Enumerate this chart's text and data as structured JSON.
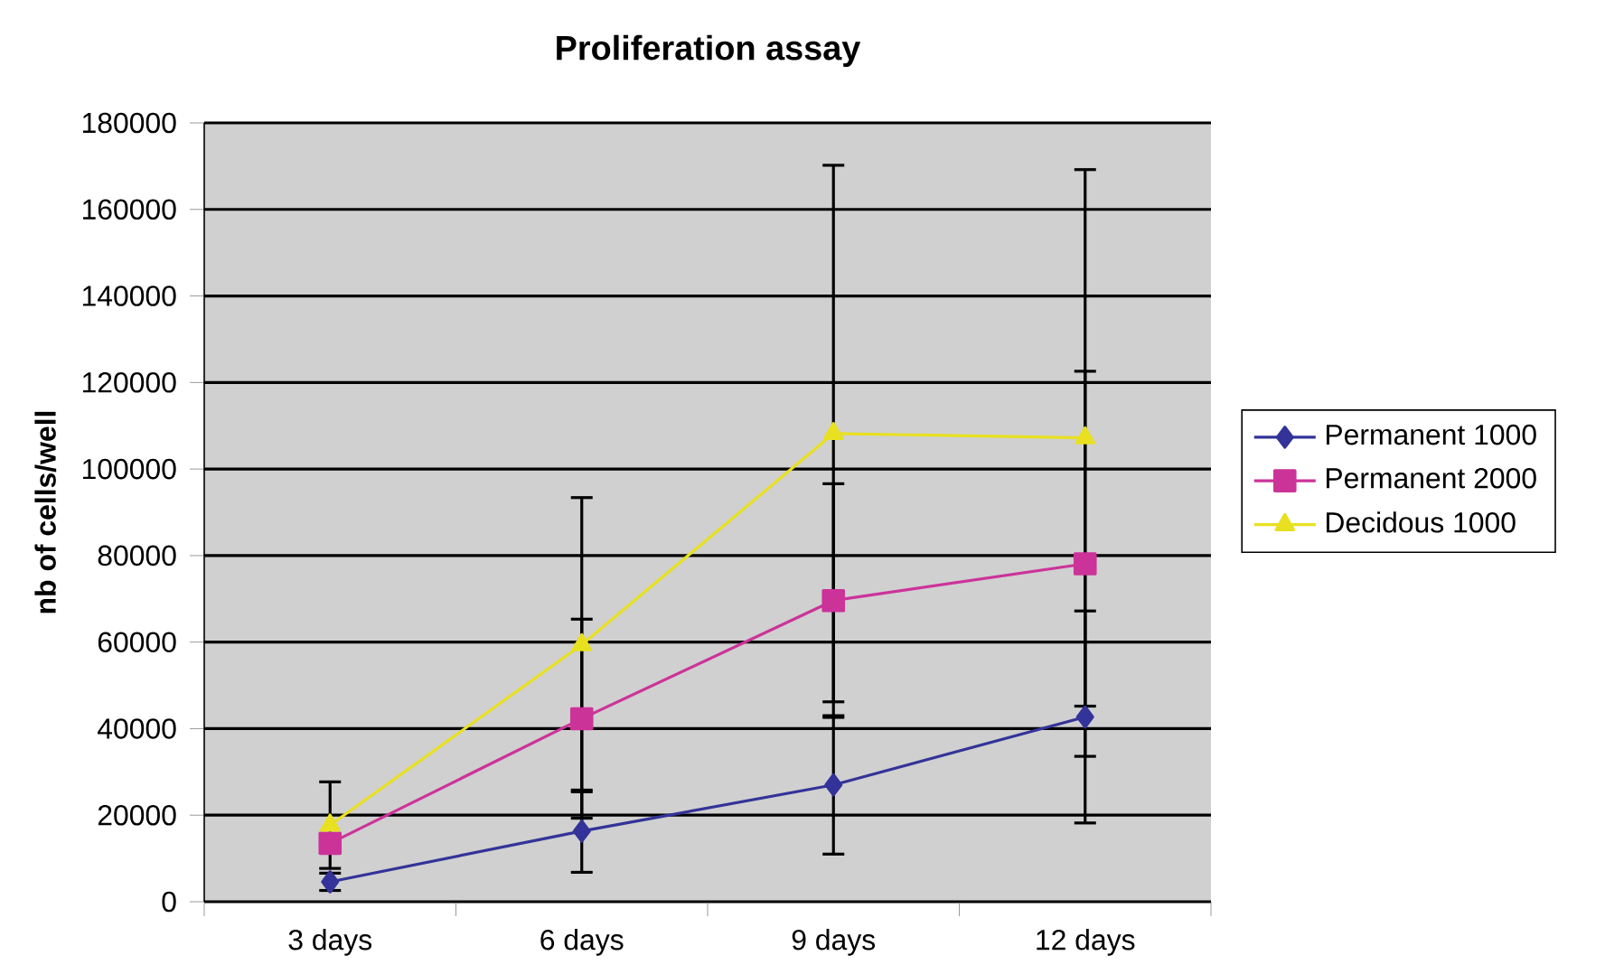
{
  "chart_data": {
    "type": "line",
    "title": "Proliferation assay",
    "ylabel": "nb of cells/well",
    "categories": [
      "3 days",
      "6 days",
      "9 days",
      "12 days"
    ],
    "series": [
      {
        "name": "Permanent 1000",
        "color": "#333399",
        "marker": "diamond",
        "values": [
          4600,
          16300,
          27000,
          42700
        ],
        "errors": [
          2000,
          9500,
          16000,
          24500
        ]
      },
      {
        "name": "Permanent 2000",
        "color": "#cc3399",
        "marker": "square",
        "values": [
          13500,
          42300,
          69600,
          78100
        ],
        "errors": [
          null,
          23000,
          27000,
          44500
        ]
      },
      {
        "name": "Decidous 1000",
        "color": "#e8e020",
        "marker": "triangle",
        "values": [
          17700,
          59400,
          108200,
          107200
        ],
        "errors": [
          10000,
          34000,
          62000,
          62000
        ]
      }
    ],
    "ylim": [
      0,
      180000
    ],
    "yticks": [
      0,
      20000,
      40000,
      60000,
      80000,
      100000,
      120000,
      140000,
      160000,
      180000
    ],
    "grid": "y",
    "legend": "right"
  }
}
